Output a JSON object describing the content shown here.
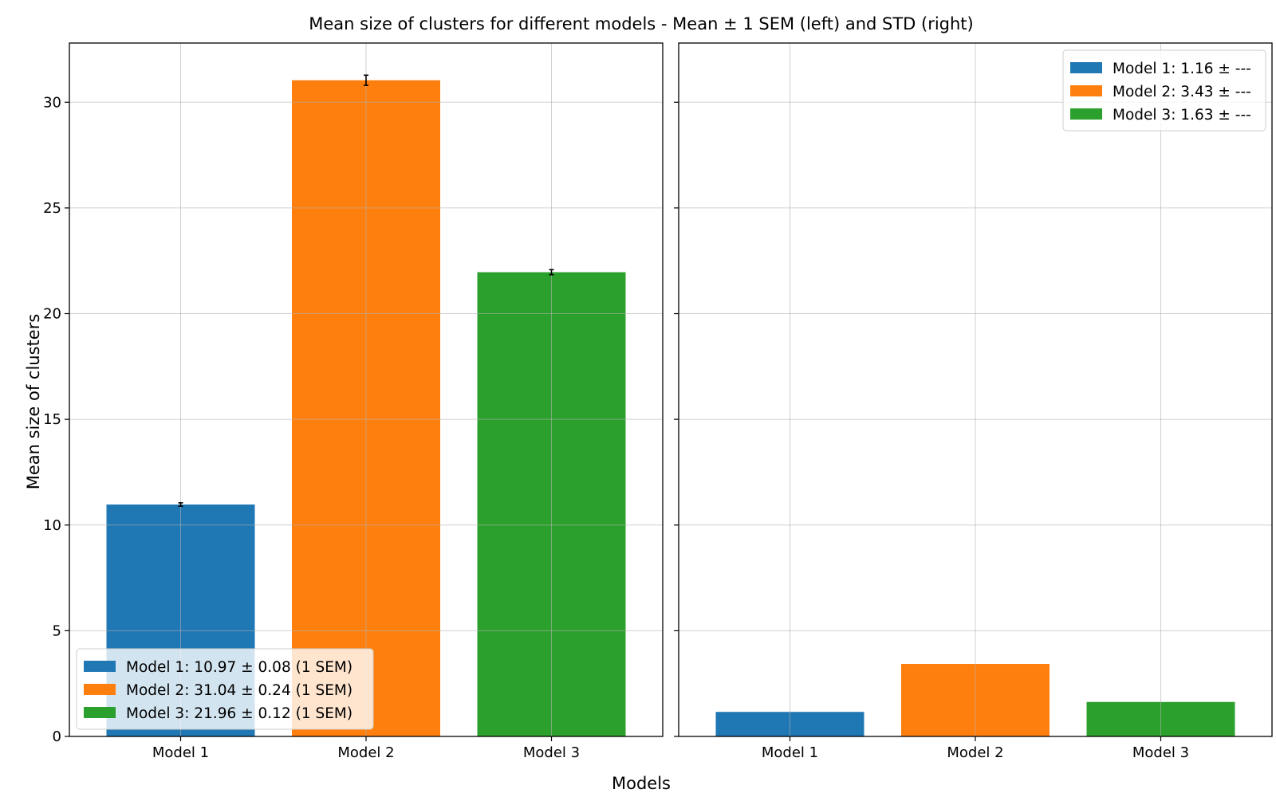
{
  "chart_data": {
    "title": "Mean size of clusters for different models - Mean ± 1 SEM (left) and STD (right)",
    "xlabel": "Models",
    "ylabel": "Mean size of clusters",
    "ylim": [
      0,
      32.8
    ],
    "yticks": [
      0,
      5,
      10,
      15,
      20,
      25,
      30
    ],
    "grid": true,
    "shared_y": true,
    "panels": [
      {
        "type": "bar",
        "categories": [
          "Model 1",
          "Model 2",
          "Model 3"
        ],
        "values": [
          10.97,
          31.04,
          21.96
        ],
        "errors": [
          0.08,
          0.24,
          0.12
        ],
        "colors": [
          "#1f77b4",
          "#ff7f0e",
          "#2ca02c"
        ],
        "legend_position": "lower-left",
        "legend": [
          "Model 1: 10.97 ± 0.08 (1 SEM)",
          "Model 2: 31.04 ± 0.24 (1 SEM)",
          "Model 3: 21.96 ± 0.12 (1 SEM)"
        ]
      },
      {
        "type": "bar",
        "categories": [
          "Model 1",
          "Model 2",
          "Model 3"
        ],
        "values": [
          1.16,
          3.43,
          1.63
        ],
        "colors": [
          "#1f77b4",
          "#ff7f0e",
          "#2ca02c"
        ],
        "legend_position": "upper-right",
        "legend": [
          "Model 1: 1.16 ± ---",
          "Model 2: 3.43 ± ---",
          "Model 3: 1.63 ± ---"
        ]
      }
    ]
  }
}
